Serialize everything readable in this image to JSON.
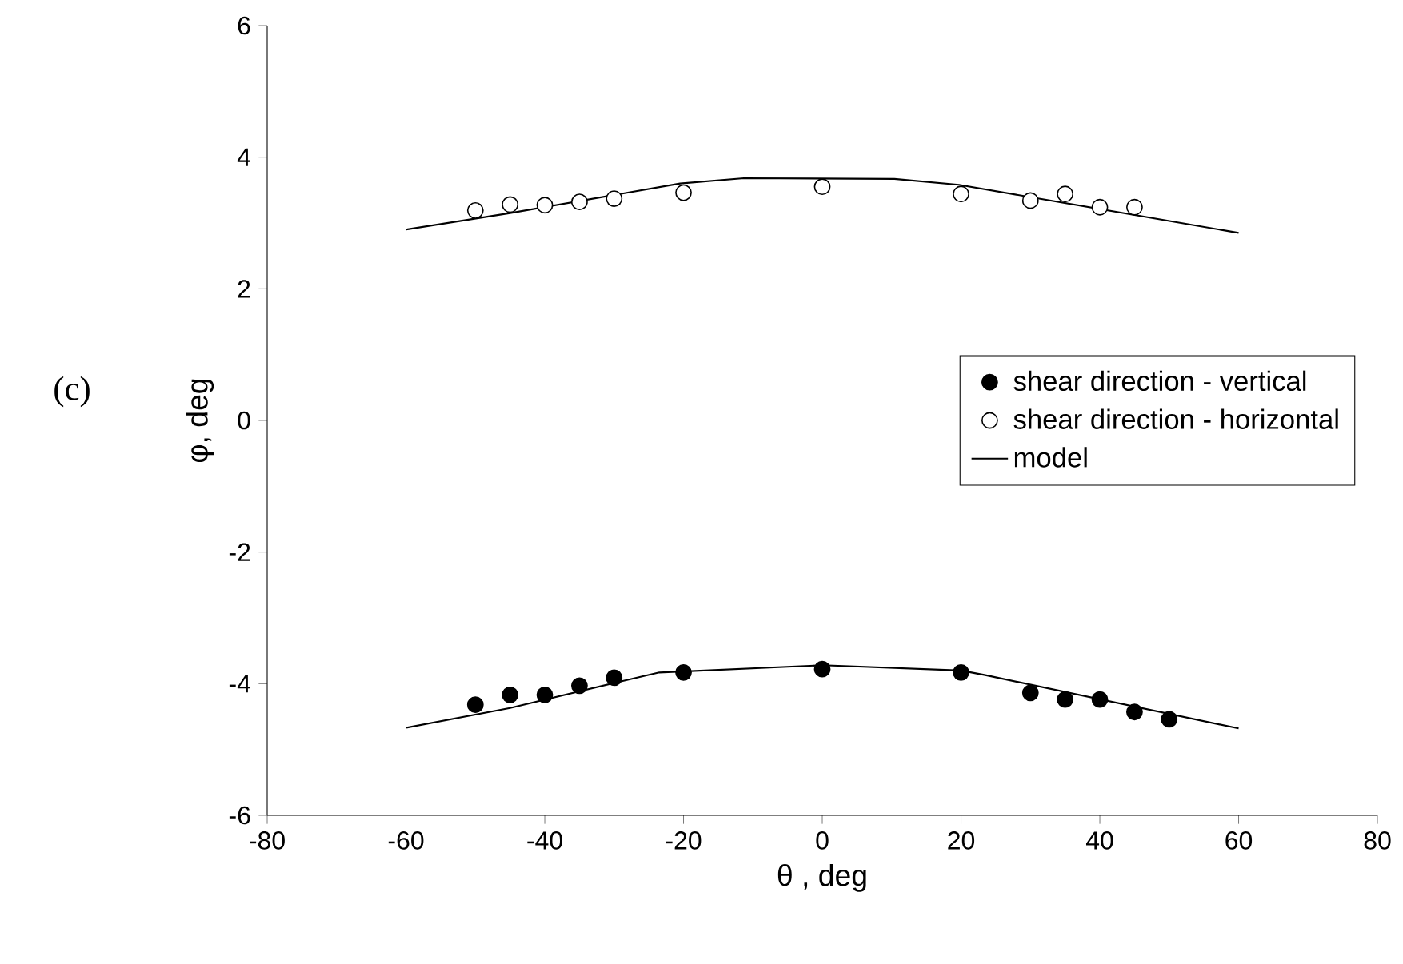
{
  "chart_data": {
    "type": "scatter",
    "xlabel": "θ , deg",
    "ylabel": "φ, deg",
    "annotations": [
      "(c)"
    ],
    "xlim": [
      -80,
      80
    ],
    "xticks": [
      -80,
      -60,
      -40,
      -20,
      0,
      20,
      40,
      60,
      80
    ],
    "ylim": [
      -6,
      6
    ],
    "yticks": [
      -6,
      -4,
      -2,
      0,
      2,
      4,
      6
    ],
    "legend": "right",
    "marker": "circle",
    "series": [
      {
        "name": "shear direction - vertical",
        "color": "#000000",
        "x": [
          -50,
          -45,
          -40,
          -35,
          -30,
          -20,
          0,
          20,
          30,
          35,
          40,
          45,
          50
        ],
        "values": [
          -4.32,
          -4.17,
          -4.17,
          -4.03,
          -3.91,
          -3.83,
          -3.78,
          -3.83,
          -4.14,
          -4.24,
          -4.24,
          -4.43,
          -4.54
        ]
      },
      {
        "name": "shear direction  - horizontal",
        "color": "#ffffff",
        "x": [
          -50,
          -45,
          -40,
          -35,
          -30,
          -20,
          0,
          20,
          30,
          35,
          40,
          45
        ],
        "values": [
          3.19,
          3.28,
          3.27,
          3.32,
          3.37,
          3.46,
          3.55,
          3.44,
          3.34,
          3.44,
          3.24,
          3.24
        ]
      },
      {
        "name": "model",
        "type": "line",
        "marker": "none",
        "line_style": "solid",
        "color": "#000000",
        "x": [
          -60,
          -45,
          -30,
          -23.5,
          0,
          20,
          23.5,
          60,
          null,
          -60,
          -45,
          -20.5,
          -11.3,
          10.4,
          19.7,
          60
        ],
        "values": [
          -4.67,
          -4.37,
          -3.99,
          -3.83,
          -3.72,
          -3.8,
          -3.87,
          -4.68,
          null,
          2.9,
          3.15,
          3.6,
          3.68,
          3.67,
          3.58,
          2.85
        ]
      }
    ]
  }
}
